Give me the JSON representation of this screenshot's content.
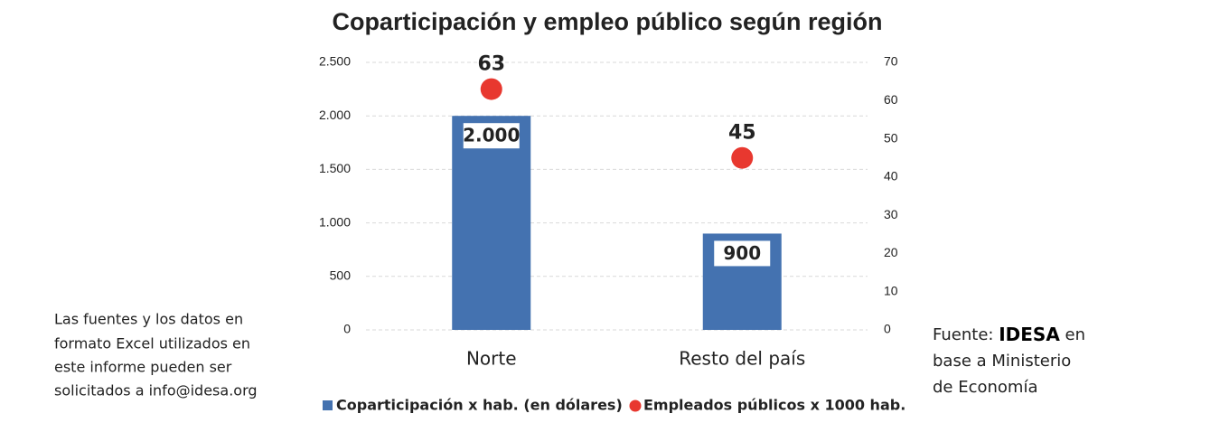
{
  "chart_data": {
    "type": "bar",
    "title": "Coparticipación y empleo público según región",
    "categories": [
      "Norte",
      "Resto del país"
    ],
    "series": [
      {
        "name": "Coparticipación x hab. (en dólares)",
        "type": "bar",
        "color": "#4472b0",
        "values": [
          2000,
          900
        ],
        "value_labels": [
          "2.000",
          "900"
        ]
      },
      {
        "name": "Empleados públicos x 1000 hab.",
        "type": "scatter",
        "color": "#e8382f",
        "values": [
          63,
          45
        ],
        "axis": "y2"
      }
    ],
    "ylim": [
      0,
      2500
    ],
    "yticks": [
      0,
      500,
      {
        "value": 1000,
        "label": "1.000"
      },
      {
        "value": 1500,
        "label": "1.500"
      },
      {
        "value": 2000,
        "label": "2.000"
      },
      {
        "value": 2500,
        "label": "2.500"
      }
    ],
    "y2lim": [
      0,
      70
    ],
    "y2ticks": [
      0,
      10,
      20,
      30,
      40,
      50,
      60,
      70
    ],
    "grid": true,
    "legend": "bottom"
  },
  "note": [
    "Las fuentes y los datos en",
    "formato Excel utilizados en",
    "este informe pueden ser",
    "solicitados a info@idesa.org"
  ],
  "source": {
    "label": "Fuente:",
    "name": "IDESA",
    "lines": [
      "en",
      "base a Ministerio",
      "de Economía"
    ]
  }
}
